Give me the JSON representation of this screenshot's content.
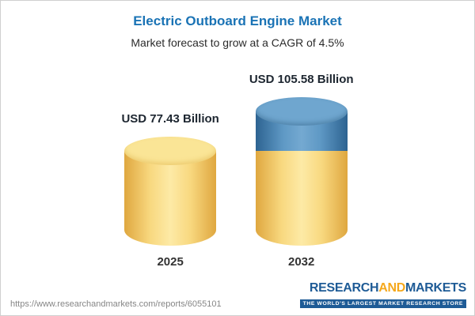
{
  "header": {
    "title": "Electric Outboard Engine Market",
    "subtitle": "Market forecast to grow at a CAGR of 4.5%"
  },
  "chart_data": {
    "type": "bar",
    "categories": [
      "2025",
      "2032"
    ],
    "values": [
      77.43,
      105.58
    ],
    "value_labels": [
      "USD 77.43 Billion",
      "USD 105.58 Billion"
    ],
    "title": "Electric Outboard Engine Market",
    "subtitle": "Market forecast to grow at a CAGR of 4.5%",
    "unit": "USD Billion",
    "legend": "none",
    "grid": false,
    "colors": {
      "base_segment": "#f6d77e",
      "growth_segment": "#5f99c5",
      "title": "#1a73b5"
    }
  },
  "footer": {
    "url": "https://www.researchandmarkets.com/reports/6055101",
    "logo": {
      "research": "RESEARCH",
      "and": "AND",
      "markets": "MARKETS",
      "tagline": "THE WORLD'S LARGEST MARKET RESEARCH STORE"
    }
  }
}
